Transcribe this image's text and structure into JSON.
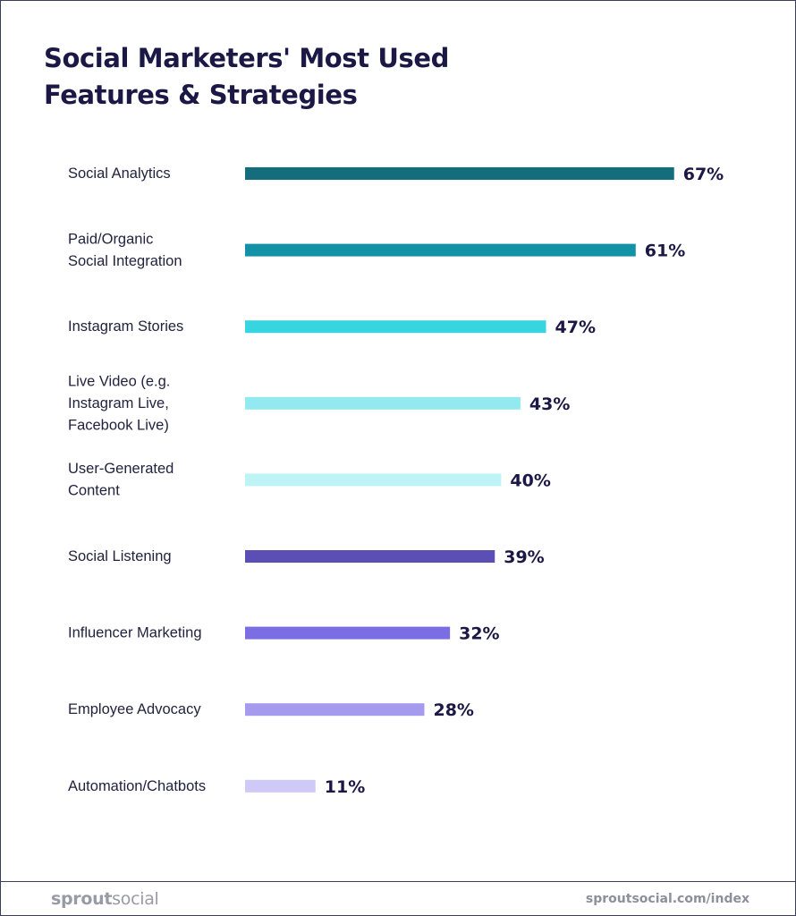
{
  "chart_data": {
    "type": "bar",
    "orientation": "horizontal",
    "title": [
      "Social Marketers' Most Used",
      "Features & Strategies"
    ],
    "xlim": [
      0,
      100
    ],
    "unit": "%",
    "grid": false,
    "categories": [
      [
        "Social Analytics"
      ],
      [
        "Paid/Organic",
        "Social Integration"
      ],
      [
        "Instagram Stories"
      ],
      [
        "Live Video (e.g.",
        "Instagram Live,",
        "Facebook Live)"
      ],
      [
        "User-Generated",
        "Content"
      ],
      [
        "Social Listening"
      ],
      [
        "Influencer Marketing"
      ],
      [
        "Employee Advocacy"
      ],
      [
        "Automation/Chatbots"
      ]
    ],
    "values": [
      67,
      61,
      47,
      43,
      40,
      39,
      32,
      28,
      11
    ],
    "value_labels": [
      "67%",
      "61%",
      "47%",
      "43%",
      "40%",
      "39%",
      "32%",
      "28%",
      "11%"
    ],
    "colors": [
      "#136d7d",
      "#1192a6",
      "#37d5e0",
      "#92e9ef",
      "#bff4f7",
      "#5b4fb6",
      "#7b6ee4",
      "#a49bef",
      "#cfc9f7"
    ]
  },
  "footer": {
    "brand_part1": "sprout",
    "brand_part2": "social",
    "site": "sproutsocial.com/index"
  }
}
